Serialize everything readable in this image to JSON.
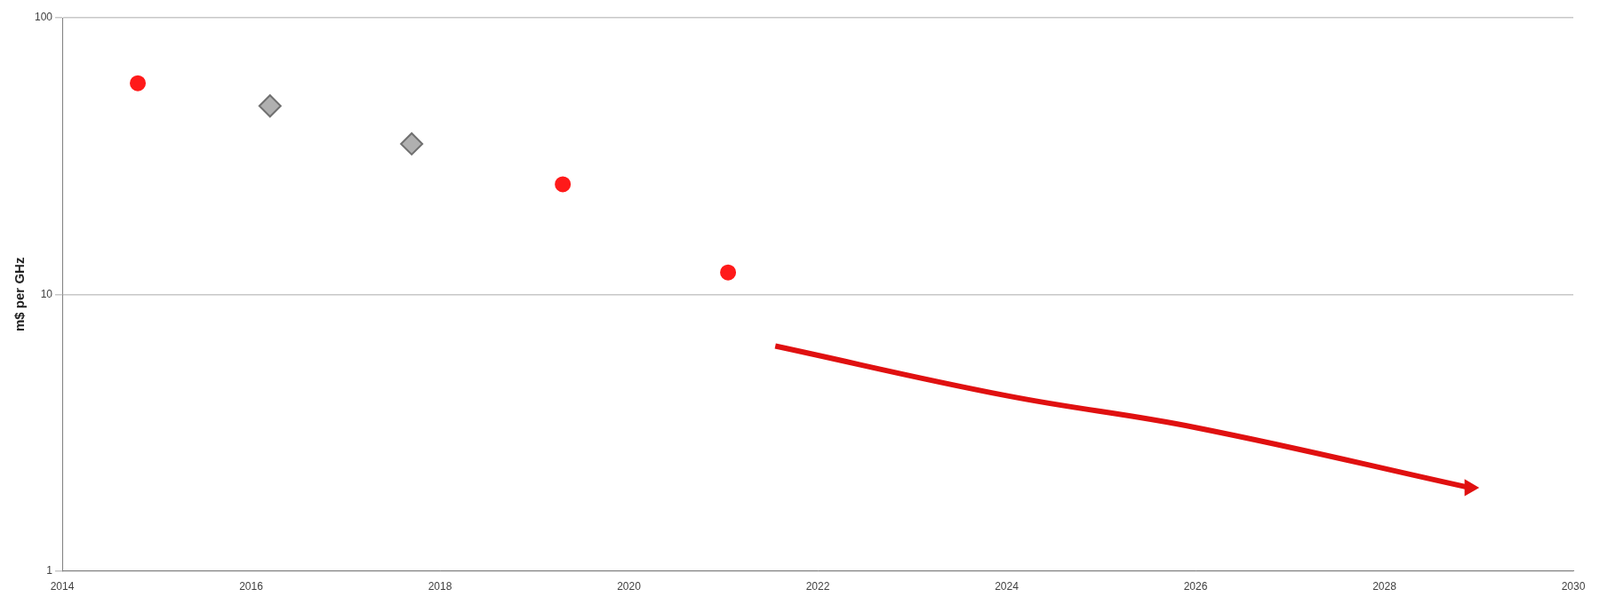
{
  "chart_data": {
    "type": "scatter",
    "y_label": "m$ per GHz",
    "xlim": [
      2014,
      2030
    ],
    "xticks": [
      2014,
      2016,
      2018,
      2020,
      2022,
      2024,
      2026,
      2028,
      2030
    ],
    "ylim": [
      1,
      100
    ],
    "yticks": [
      1,
      10,
      100
    ],
    "log": "y",
    "grid": "y",
    "series": [
      {
        "color": "#b0b0b0",
        "marker": "rectRot",
        "x": [
          2016.2,
          2017.7
        ],
        "values": [
          48,
          35
        ]
      },
      {
        "color": "#ff1a1a",
        "marker": "circle",
        "x": [
          2014.8,
          2019.3,
          2021.05
        ],
        "values": [
          58,
          25,
          12
        ]
      },
      {
        "type": "line",
        "color": "#e01010",
        "marker": "arrow",
        "line_style": "solid",
        "x": [
          2021.55,
          2024,
          2026,
          2028.9
        ],
        "values": [
          6.5,
          4.3,
          3.3,
          2.0
        ]
      }
    ]
  }
}
